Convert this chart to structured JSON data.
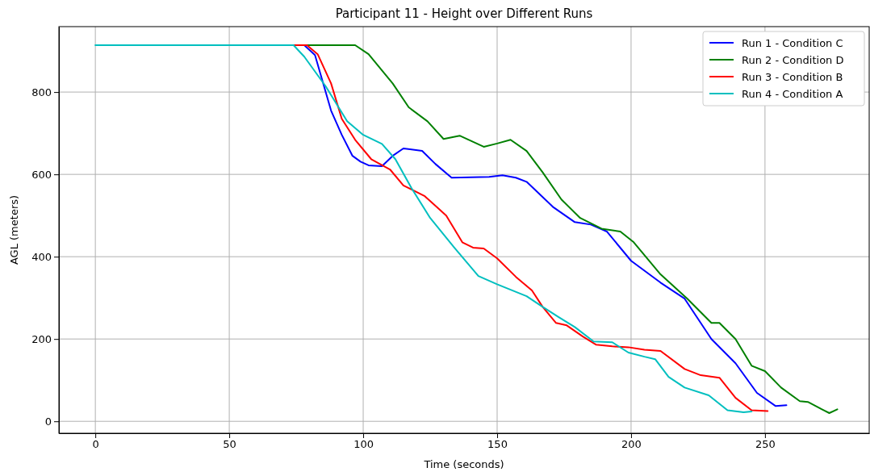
{
  "chart_data": {
    "type": "line",
    "title": "Participant 11 - Height over Different Runs",
    "xlabel": "Time (seconds)",
    "ylabel": "AGL (meters)",
    "xlim": [
      -13.6,
      288.9
    ],
    "ylim": [
      -29,
      959
    ],
    "xticks": [
      0,
      50,
      100,
      150,
      200,
      250
    ],
    "yticks": [
      0,
      200,
      400,
      600,
      800
    ],
    "grid": true,
    "legend": "top right",
    "series": [
      {
        "name": "Run 1 - Condition C",
        "color": "#0000ff",
        "x": [
          78,
          82,
          88,
          92,
          96,
          99,
          102,
          107,
          111,
          115,
          122,
          127,
          133,
          147,
          152,
          157,
          161,
          171,
          179,
          185,
          191,
          200,
          211,
          220,
          230,
          239,
          247,
          254,
          258
        ],
        "values": [
          914,
          890,
          755,
          696,
          645,
          631,
          622,
          620,
          645,
          663,
          657,
          625,
          592,
          594,
          598,
          592,
          582,
          520,
          484,
          478,
          461,
          390,
          337,
          298,
          200,
          141,
          69,
          37,
          39
        ]
      },
      {
        "name": "Run 2 - Condition D",
        "color": "#008000",
        "x": [
          79,
          97,
          102,
          111,
          117,
          124,
          130,
          136,
          145,
          150,
          155,
          161,
          167,
          174,
          181,
          189,
          196,
          201,
          211,
          221,
          230,
          233,
          239,
          245,
          250,
          256,
          263,
          266,
          274,
          277
        ],
        "values": [
          914,
          914,
          892,
          821,
          763,
          729,
          686,
          694,
          667,
          675,
          684,
          657,
          605,
          539,
          494,
          468,
          461,
          435,
          357,
          298,
          239,
          239,
          200,
          135,
          122,
          82,
          49,
          47,
          20,
          29
        ]
      },
      {
        "name": "Run 3 - Condition B",
        "color": "#ff0000",
        "x": [
          74,
          79,
          83,
          88,
          92,
          97,
          103,
          110,
          115,
          123,
          131,
          137,
          141,
          145,
          150,
          157,
          163,
          167,
          172,
          176,
          182,
          187,
          193,
          199,
          205,
          211,
          220,
          226,
          233,
          239,
          245,
          251
        ],
        "values": [
          914,
          914,
          892,
          821,
          735,
          684,
          637,
          612,
          573,
          547,
          500,
          435,
          422,
          420,
          396,
          351,
          318,
          278,
          239,
          233,
          206,
          186,
          182,
          180,
          174,
          171,
          127,
          112,
          106,
          57,
          27,
          25
        ]
      },
      {
        "name": "Run 4 - Condition A",
        "color": "#00bfbf",
        "x": [
          0,
          74,
          78,
          86,
          94,
          100,
          107,
          112,
          118,
          125,
          134,
          143,
          150,
          161,
          167,
          173,
          179,
          186,
          193,
          199,
          205,
          209,
          214,
          220,
          229,
          236,
          242,
          245
        ],
        "values": [
          914,
          914,
          886,
          814,
          729,
          696,
          674,
          637,
          567,
          494,
          422,
          353,
          333,
          304,
          278,
          253,
          229,
          194,
          192,
          167,
          157,
          151,
          108,
          82,
          63,
          27,
          22,
          24
        ]
      }
    ]
  }
}
